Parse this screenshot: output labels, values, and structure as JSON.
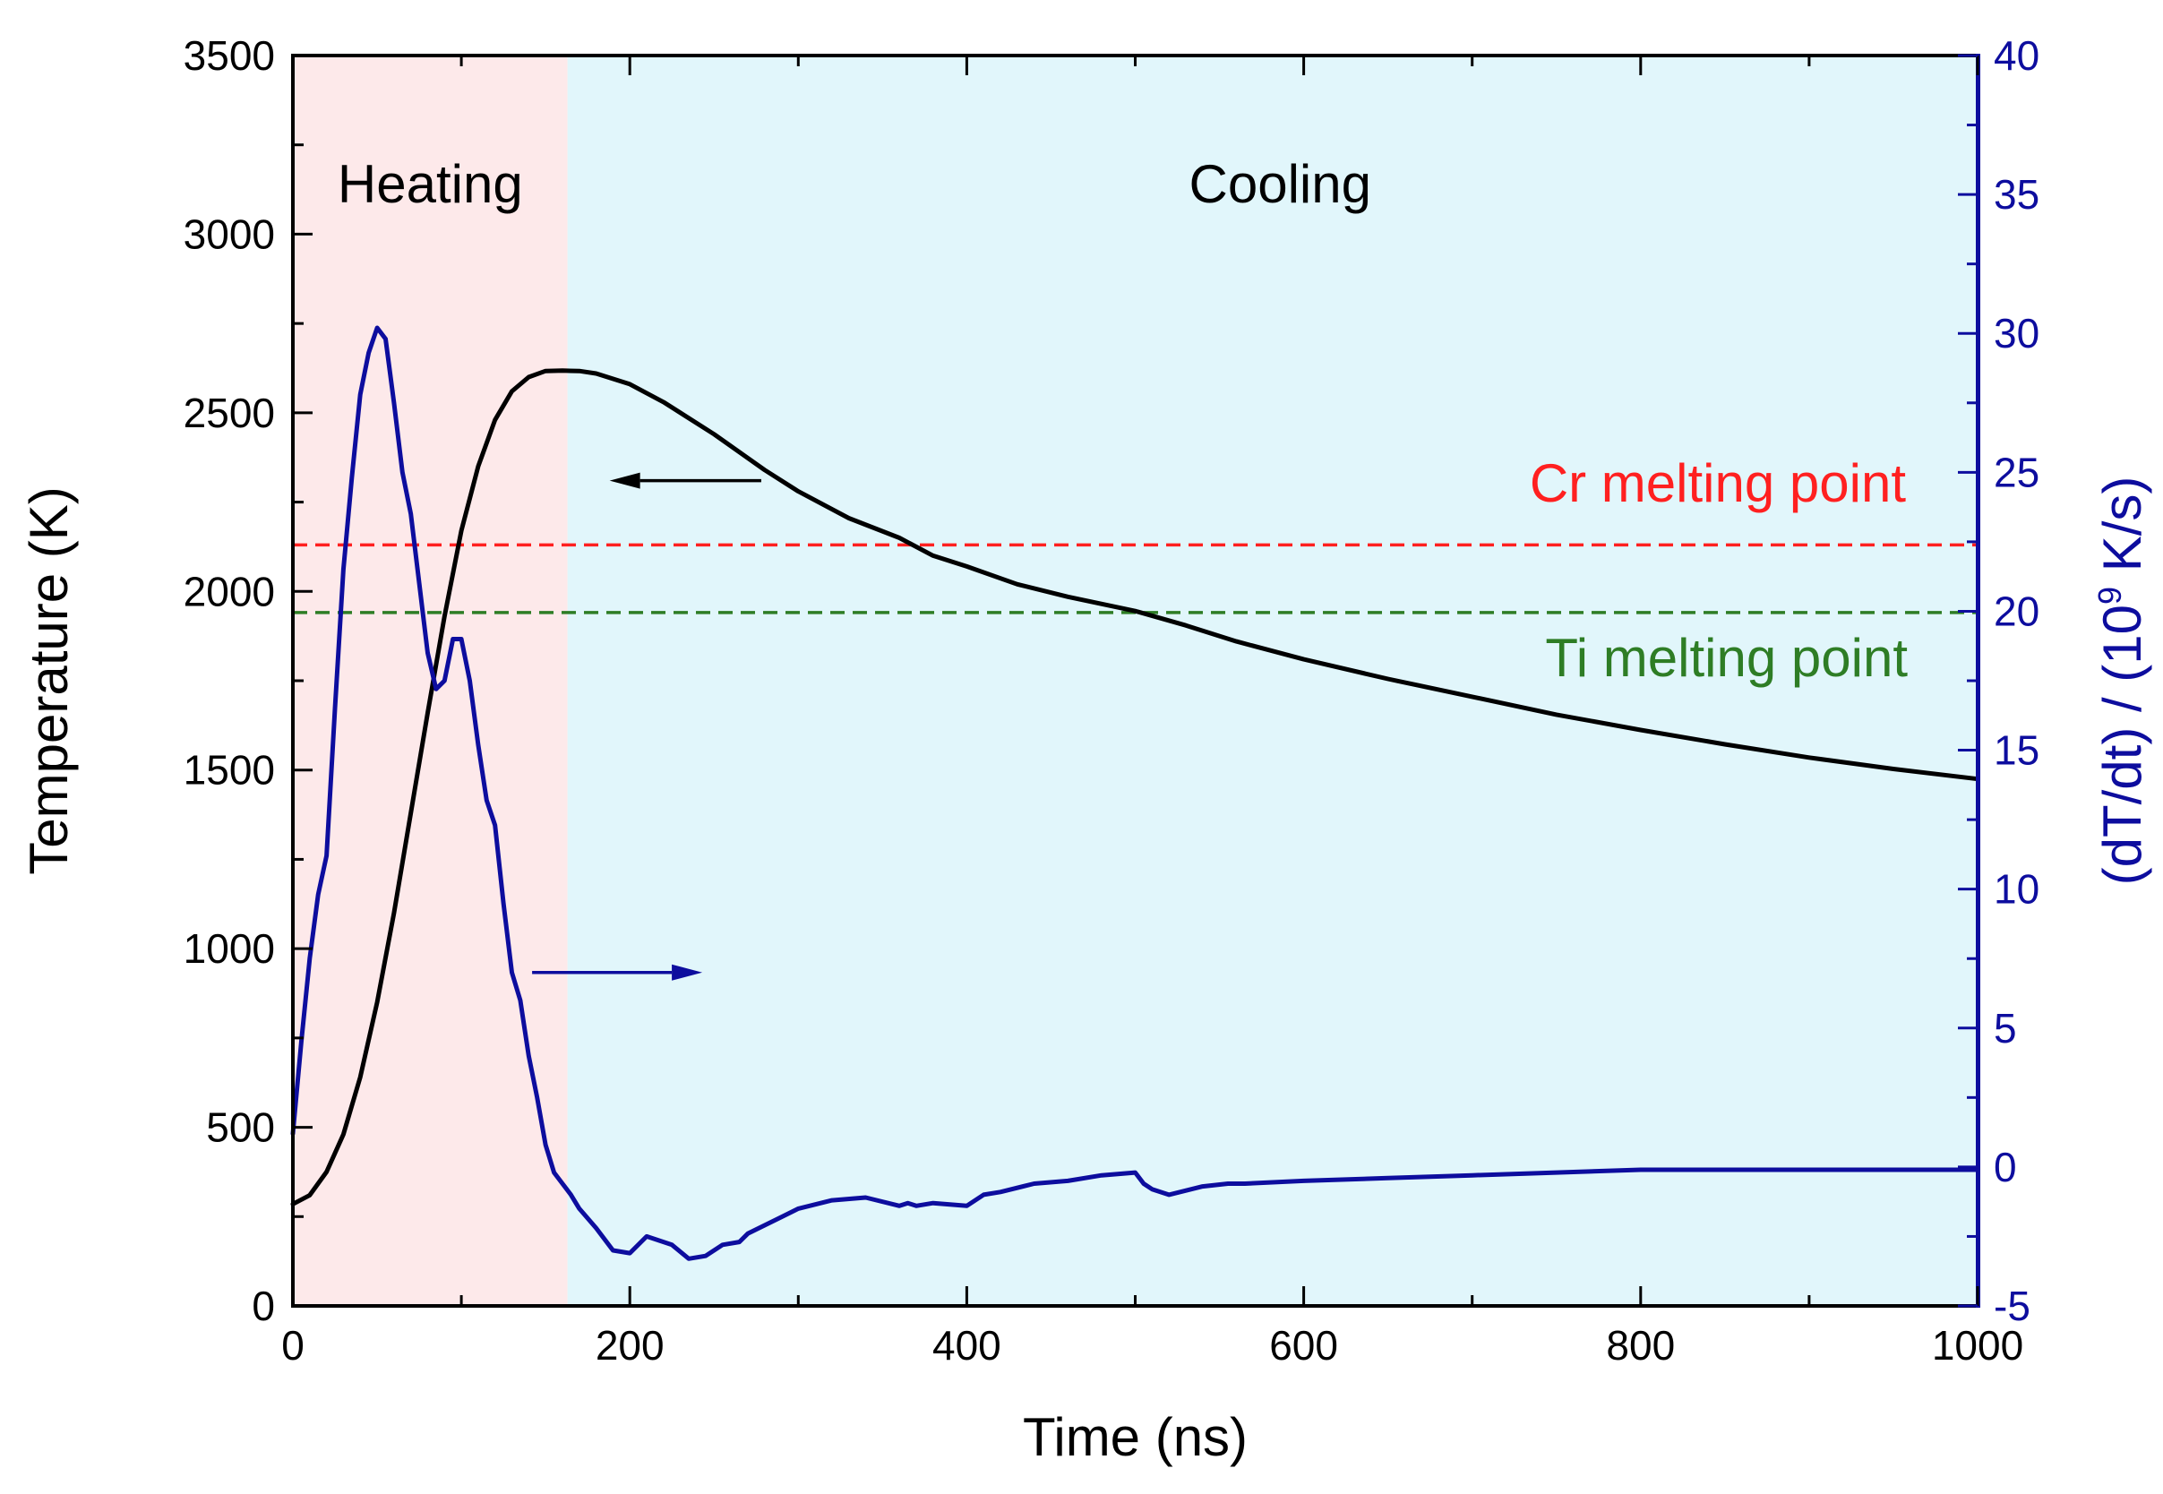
{
  "chart_data": {
    "type": "line",
    "xlabel": "Time (ns)",
    "ylabel": "Temperature (K)",
    "y2label_main": "(dT/dt) / (10",
    "y2label_sup": "9",
    "y2label_tail": " K/s)",
    "xlim": [
      0,
      1000
    ],
    "ylim": [
      0,
      3500
    ],
    "y2lim": [
      -5,
      40
    ],
    "x_ticks": [
      0,
      200,
      400,
      600,
      800,
      1000
    ],
    "y_ticks": [
      0,
      500,
      1000,
      1500,
      2000,
      2500,
      3000,
      3500
    ],
    "y2_ticks": [
      -5,
      0,
      5,
      10,
      15,
      20,
      25,
      30,
      35,
      40
    ],
    "regions": [
      {
        "name": "Heating",
        "label": "Heating",
        "x_start": 0,
        "x_end": 163,
        "color": "#fde9ea"
      },
      {
        "name": "Cooling",
        "label": "Cooling",
        "x_start": 163,
        "x_end": 1000,
        "color": "#e1f6fb"
      }
    ],
    "reference_lines": [
      {
        "name": "Cr melting point",
        "label": "Cr melting point",
        "y": 2130,
        "color": "#ff2020"
      },
      {
        "name": "Ti melting point",
        "label": "Ti melting point",
        "y": 1941,
        "color": "#2e7d25"
      }
    ],
    "series": [
      {
        "name": "Temperature",
        "axis": "left",
        "color": "#000000",
        "x": [
          0,
          10,
          20,
          30,
          40,
          50,
          60,
          70,
          80,
          90,
          100,
          110,
          120,
          130,
          140,
          150,
          160,
          170,
          180,
          200,
          220,
          250,
          280,
          300,
          330,
          360,
          380,
          400,
          430,
          460,
          500,
          530,
          560,
          600,
          650,
          700,
          750,
          800,
          850,
          900,
          950,
          1000
        ],
        "values": [
          285,
          310,
          375,
          480,
          640,
          850,
          1100,
          1380,
          1660,
          1930,
          2170,
          2350,
          2480,
          2560,
          2600,
          2617,
          2618,
          2617,
          2610,
          2580,
          2530,
          2440,
          2340,
          2280,
          2205,
          2150,
          2100,
          2070,
          2020,
          1985,
          1945,
          1905,
          1860,
          1810,
          1755,
          1705,
          1655,
          1612,
          1572,
          1535,
          1503,
          1475
        ]
      },
      {
        "name": "dT/dt",
        "axis": "right",
        "color": "#0d0d9e",
        "x": [
          0,
          5,
          10,
          15,
          20,
          25,
          30,
          35,
          40,
          45,
          50,
          55,
          60,
          65,
          70,
          75,
          80,
          85,
          90,
          95,
          100,
          105,
          110,
          115,
          120,
          125,
          130,
          135,
          140,
          145,
          150,
          155,
          160,
          165,
          170,
          180,
          190,
          200,
          210,
          215,
          225,
          235,
          245,
          255,
          265,
          270,
          280,
          290,
          300,
          320,
          340,
          360,
          365,
          370,
          380,
          400,
          410,
          420,
          440,
          460,
          480,
          500,
          505,
          510,
          520,
          540,
          555,
          565,
          600,
          650,
          700,
          750,
          800,
          850,
          900,
          950,
          1000
        ],
        "values": [
          1.2,
          4.5,
          7.5,
          9.8,
          11.2,
          16.5,
          21.5,
          24.8,
          27.8,
          29.3,
          30.2,
          29.8,
          27.5,
          25.0,
          23.5,
          21.0,
          18.5,
          17.2,
          17.5,
          19.0,
          19.0,
          17.5,
          15.2,
          13.2,
          12.3,
          9.5,
          7.0,
          6.0,
          4.0,
          2.5,
          0.8,
          -0.2,
          -0.6,
          -1.0,
          -1.5,
          -2.2,
          -3.0,
          -3.1,
          -2.5,
          -2.6,
          -2.8,
          -3.3,
          -3.2,
          -2.8,
          -2.7,
          -2.4,
          -2.1,
          -1.8,
          -1.5,
          -1.2,
          -1.1,
          -1.4,
          -1.3,
          -1.4,
          -1.3,
          -1.4,
          -1.0,
          -0.9,
          -0.6,
          -0.5,
          -0.3,
          -0.2,
          -0.6,
          -0.8,
          -1.0,
          -0.7,
          -0.6,
          -0.6,
          -0.5,
          -0.4,
          -0.3,
          -0.2,
          -0.1,
          -0.1,
          -0.1,
          -0.1,
          -0.1
        ]
      }
    ],
    "annotations": [
      {
        "name": "left-arrow",
        "description": "arrow pointing to left axis",
        "color": "#000000",
        "x_from": 278,
        "x_to": 188,
        "y": 2310,
        "axis": "left"
      },
      {
        "name": "right-arrow",
        "description": "arrow pointing to right axis",
        "color": "#0d0d9e",
        "x_from": 142,
        "x_to": 243,
        "y": 7.0,
        "axis": "right"
      }
    ],
    "legend": "none",
    "grid": false
  }
}
